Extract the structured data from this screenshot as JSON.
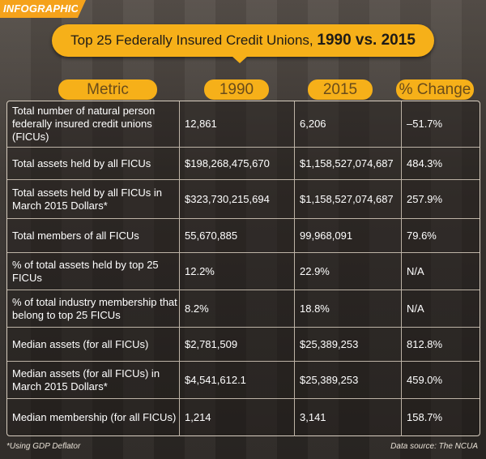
{
  "tag": "INFOGRAPHIC",
  "title": {
    "main": "Top 25 Federally Insured Credit Unions, ",
    "bold": "1990 vs. 2015"
  },
  "chart_data": {
    "type": "table",
    "columns": [
      "Metric",
      "1990",
      "2015",
      "% Change"
    ],
    "rows": [
      [
        "Total number of natural person federally insured credit unions (FICUs)",
        "12,861",
        "6,206",
        "–51.7%"
      ],
      [
        "Total assets held by all FICUs",
        "$198,268,475,670",
        "$1,158,527,074,687",
        "484.3%"
      ],
      [
        "Total assets held by all FICUs in March 2015 Dollars*",
        "$323,730,215,694",
        "$1,158,527,074,687",
        "257.9%"
      ],
      [
        "Total members of all FICUs",
        "55,670,885",
        "99,968,091",
        "79.6%"
      ],
      [
        "% of total assets held by top 25 FICUs",
        "12.2%",
        "22.9%",
        "N/A"
      ],
      [
        "% of total industry membership that belong to top 25 FICUs",
        "8.2%",
        "18.8%",
        "N/A"
      ],
      [
        "Median assets (for all FICUs)",
        "$2,781,509",
        "$25,389,253",
        "812.8%"
      ],
      [
        "Median assets (for all FICUs) in March 2015 Dollars*",
        "$4,541,612.1",
        "$25,389,253",
        "459.0%"
      ],
      [
        "Median membership (for all FICUs)",
        "1,214",
        "3,141",
        "158.7%"
      ]
    ]
  },
  "footnotes": {
    "left": "*Using GDP Deflator",
    "right": "Data source: The NCUA"
  }
}
